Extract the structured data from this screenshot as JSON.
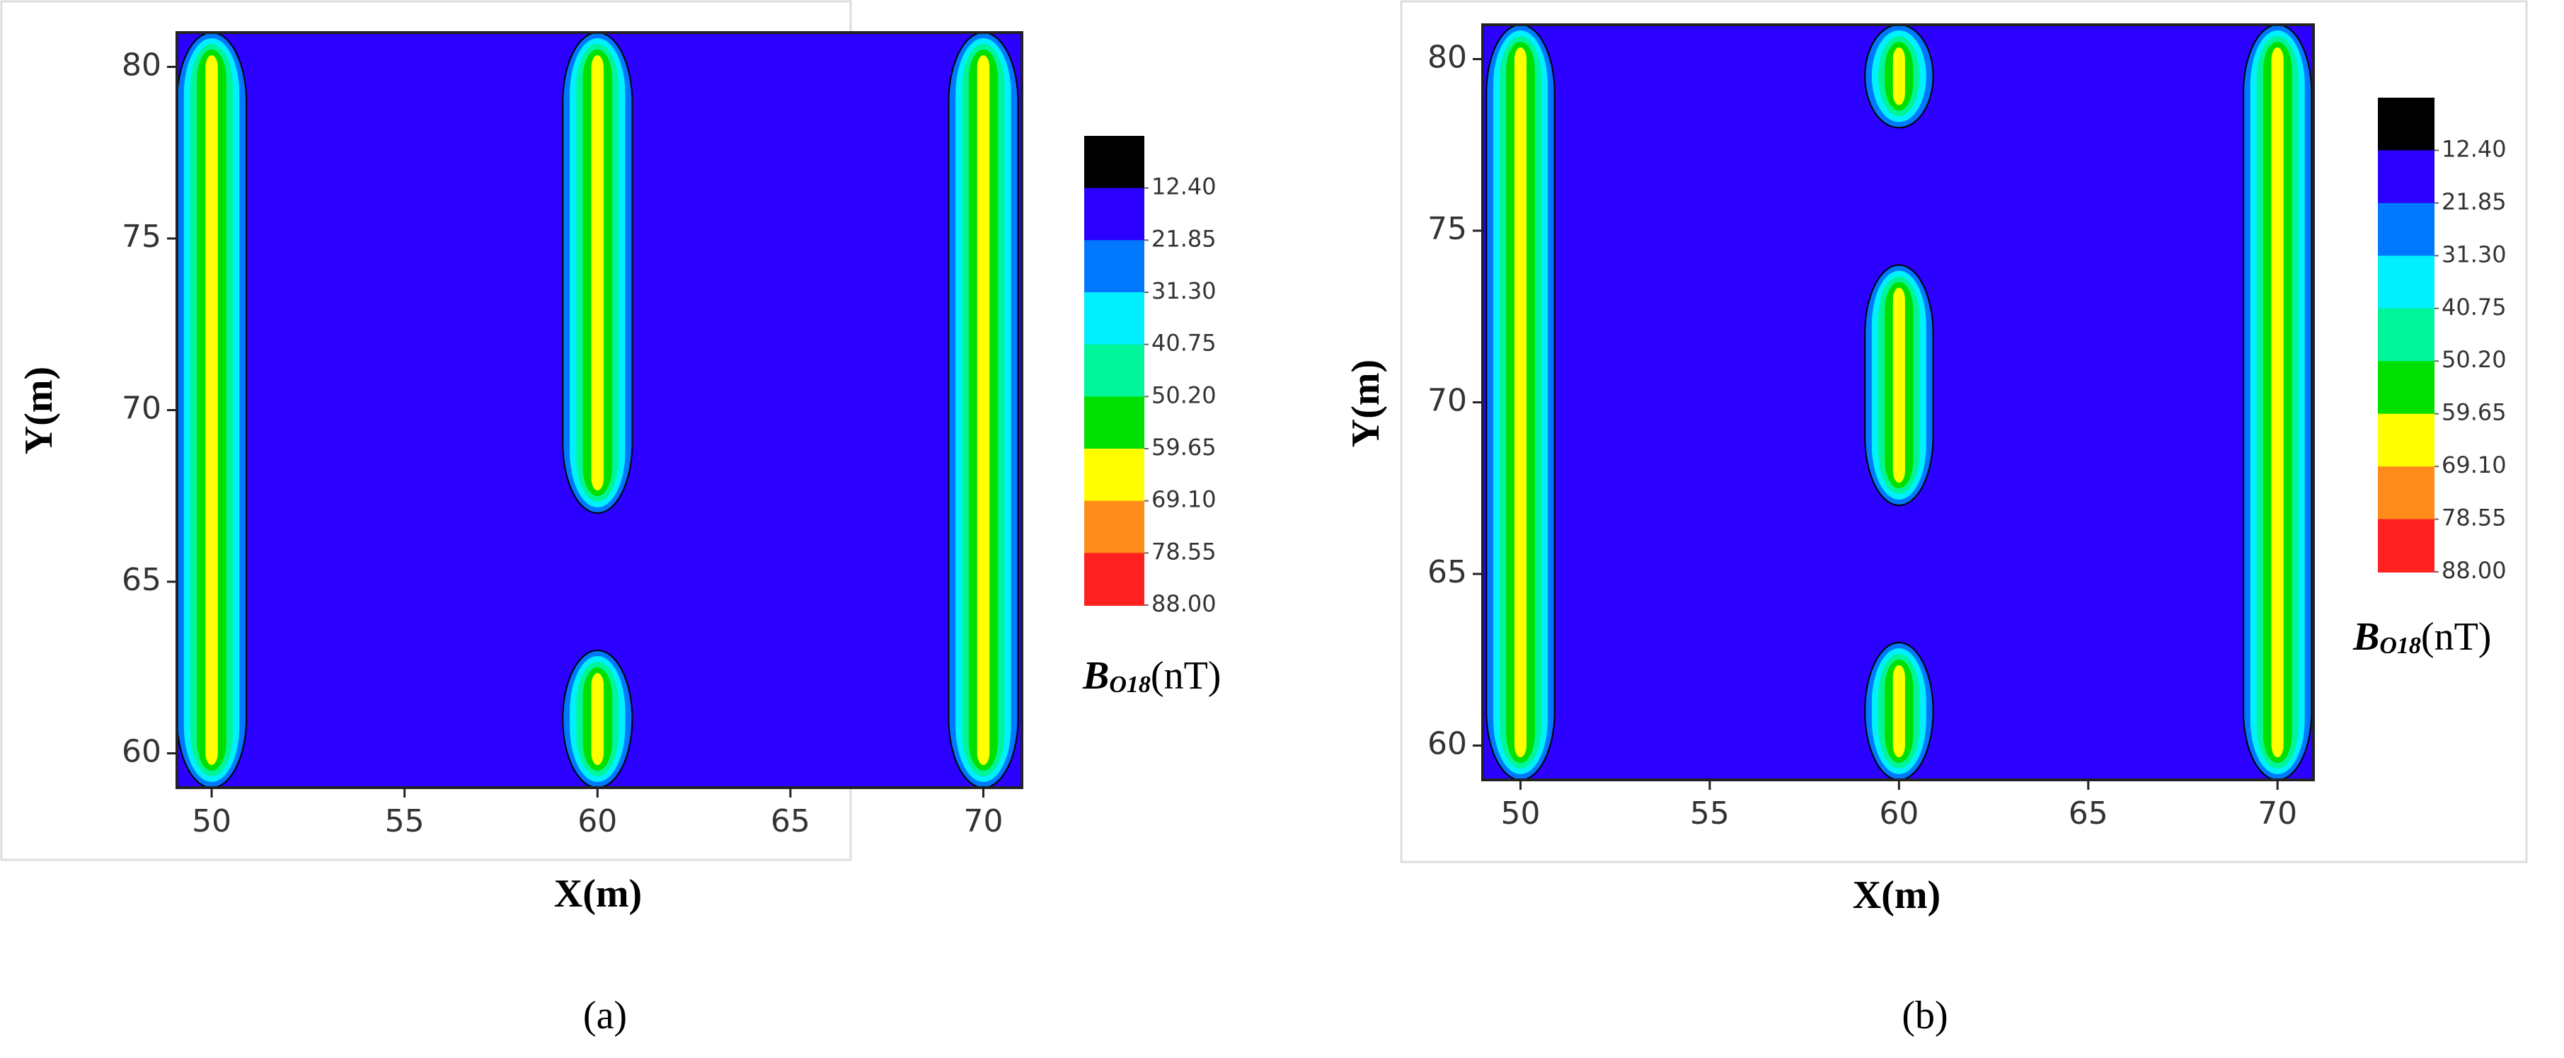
{
  "chart_data": [
    {
      "type": "contour",
      "caption": "(a)",
      "xlabel": "X(m)",
      "ylabel": "Y(m)",
      "xlim": [
        49.1,
        71
      ],
      "ylim": [
        59,
        81
      ],
      "xticks": [
        50,
        55,
        60,
        65,
        70
      ],
      "yticks": [
        60,
        65,
        70,
        75,
        80
      ],
      "background": "#2b00ff",
      "colorbar": {
        "title": {
          "symbol": "B",
          "subscript": "O18",
          "unit": "(nT)"
        },
        "colors": [
          "#000000",
          "#2b00ff",
          "#0077ff",
          "#00f0ff",
          "#00f59a",
          "#00e000",
          "#ffff00",
          "#ff8c1a",
          "#ff2020"
        ],
        "ticks": [
          {
            "value": 12.4,
            "label": "12.40"
          },
          {
            "value": 21.85,
            "label": "21.85"
          },
          {
            "value": 31.3,
            "label": "31.30"
          },
          {
            "value": 40.75,
            "label": "40.75"
          },
          {
            "value": 50.2,
            "label": "50.20"
          },
          {
            "value": 59.65,
            "label": "59.65"
          },
          {
            "value": 69.1,
            "label": "69.10"
          },
          {
            "value": 78.55,
            "label": "78.55"
          },
          {
            "value": 88,
            "label": "88.00"
          }
        ]
      },
      "anomalies": [
        {
          "x": 50,
          "y": [
            59,
            81
          ]
        },
        {
          "x": 60,
          "y": [
            67,
            81
          ]
        },
        {
          "x": 60,
          "y": [
            59,
            63
          ]
        },
        {
          "x": 70,
          "y": [
            59,
            81
          ]
        }
      ]
    },
    {
      "type": "contour",
      "caption": "(b)",
      "xlabel": "X(m)",
      "ylabel": "Y(m)",
      "xlim": [
        49,
        70.95
      ],
      "ylim": [
        59,
        81
      ],
      "xticks": [
        50,
        55,
        60,
        65,
        70
      ],
      "yticks": [
        60,
        65,
        70,
        75,
        80
      ],
      "background": "#2b00ff",
      "colorbar": {
        "title": {
          "symbol": "B",
          "subscript": "O18",
          "unit": "(nT)"
        },
        "colors": [
          "#000000",
          "#2b00ff",
          "#0077ff",
          "#00f0ff",
          "#00f59a",
          "#00e000",
          "#ffff00",
          "#ff8c1a",
          "#ff2020"
        ],
        "ticks": [
          {
            "value": 12.4,
            "label": "12.40"
          },
          {
            "value": 21.85,
            "label": "21.85"
          },
          {
            "value": 31.3,
            "label": "31.30"
          },
          {
            "value": 40.75,
            "label": "40.75"
          },
          {
            "value": 50.2,
            "label": "50.20"
          },
          {
            "value": 59.65,
            "label": "59.65"
          },
          {
            "value": 69.1,
            "label": "69.10"
          },
          {
            "value": 78.55,
            "label": "78.55"
          },
          {
            "value": 88,
            "label": "88.00"
          }
        ]
      },
      "anomalies": [
        {
          "x": 50,
          "y": [
            59,
            81
          ]
        },
        {
          "x": 60,
          "y": [
            78,
            81
          ]
        },
        {
          "x": 60,
          "y": [
            67,
            74
          ]
        },
        {
          "x": 60,
          "y": [
            59,
            63
          ]
        },
        {
          "x": 70,
          "y": [
            59,
            81
          ]
        }
      ]
    }
  ]
}
